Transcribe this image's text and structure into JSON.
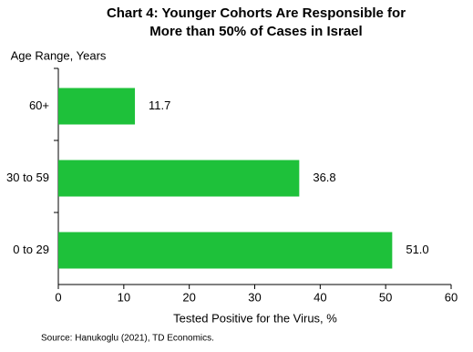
{
  "chart_data": {
    "type": "hbar",
    "title": [
      "Chart 4: Younger Cohorts Are Responsible for",
      "More than 50% of Cases in Israel"
    ],
    "y_label": "Age Range, Years",
    "x_label": "Tested Positive for the Virus, %",
    "source": "Source:  Hanukoglu  (2021), TD Economics.",
    "categories": [
      "60+",
      "30 to 59",
      "0 to 29"
    ],
    "values": [
      11.7,
      36.8,
      51
    ],
    "value_labels": [
      "11.7",
      "36.8",
      "51.0"
    ],
    "color": "#1ec13a",
    "xlim": [
      0,
      60
    ],
    "xticks": [
      0,
      10,
      20,
      30,
      40,
      50,
      60
    ]
  }
}
